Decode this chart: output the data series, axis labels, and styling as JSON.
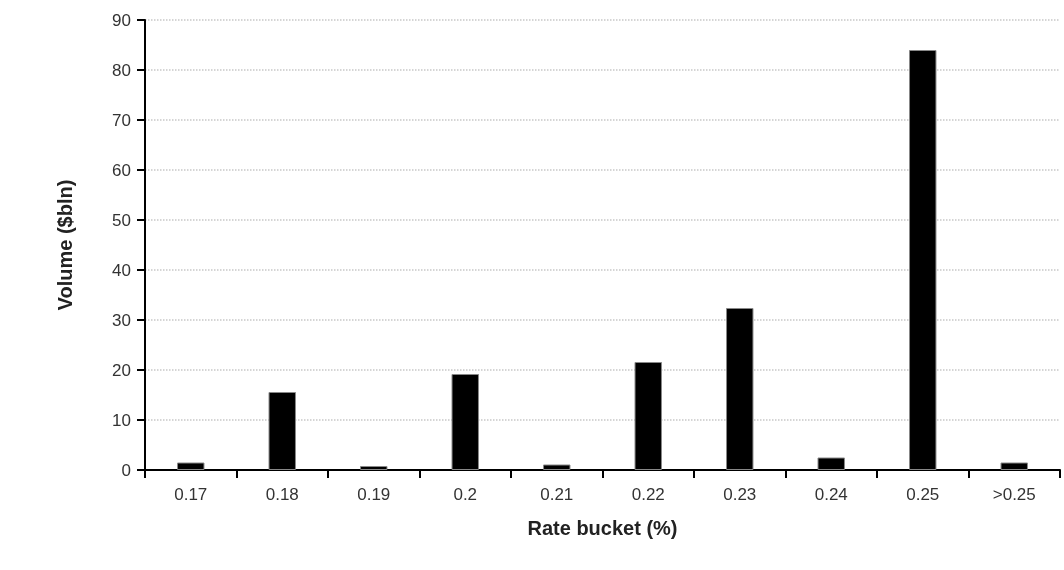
{
  "chart_data": {
    "type": "bar",
    "xlabel": "Rate bucket (%)",
    "ylabel": "Volume ($bln)",
    "categories": [
      "0.17",
      "0.18",
      "0.19",
      "0.2",
      "0.21",
      "0.22",
      "0.23",
      "0.24",
      "0.25",
      ">0.25"
    ],
    "values": [
      1.5,
      15.6,
      0.8,
      19.2,
      1.1,
      21.6,
      32.4,
      2.5,
      84,
      1.5
    ],
    "color": "#000000",
    "ylim": [
      0,
      90
    ],
    "yticks": [
      0,
      10,
      20,
      30,
      40,
      50,
      60,
      70,
      80,
      90
    ],
    "grid": "y"
  }
}
